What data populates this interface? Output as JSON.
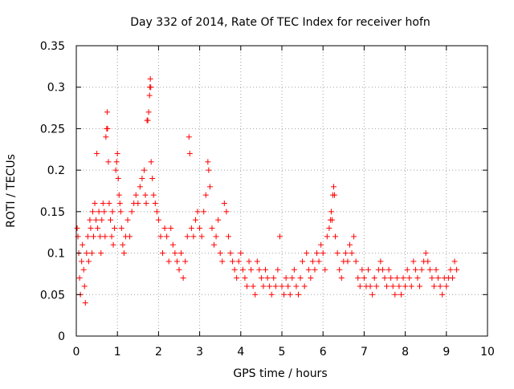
{
  "chart_data": {
    "type": "scatter",
    "title": "Day 332 of 2014, Rate Of TEC Index for receiver hofn",
    "xlabel": "GPS time / hours",
    "ylabel": "ROTI / TECUs",
    "xlim": [
      0,
      10
    ],
    "ylim": [
      0,
      0.35
    ],
    "x_ticks": [
      0,
      1,
      2,
      3,
      4,
      5,
      6,
      7,
      8,
      9,
      10
    ],
    "x_tick_labels": [
      "0",
      "1",
      "2",
      "3",
      "4",
      "5",
      "6",
      "7",
      "8",
      "9",
      "10"
    ],
    "y_ticks": [
      0,
      0.05,
      0.1,
      0.15,
      0.2,
      0.25,
      0.3,
      0.35
    ],
    "y_tick_labels": [
      "0",
      "0.05",
      "0.1",
      "0.15",
      "0.2",
      "0.25",
      "0.3",
      "0.35"
    ],
    "grid": true,
    "marker": "+",
    "marker_color": "#ff0000",
    "series": [
      {
        "name": "ROTI",
        "points": [
          [
            0.02,
            0.13
          ],
          [
            0.04,
            0.12
          ],
          [
            0.06,
            0.1
          ],
          [
            0.08,
            0.07
          ],
          [
            0.1,
            0.05
          ],
          [
            0.13,
            0.09
          ],
          [
            0.15,
            0.11
          ],
          [
            0.18,
            0.08
          ],
          [
            0.2,
            0.06
          ],
          [
            0.22,
            0.04
          ],
          [
            0.25,
            0.1
          ],
          [
            0.28,
            0.12
          ],
          [
            0.3,
            0.09
          ],
          [
            0.33,
            0.14
          ],
          [
            0.35,
            0.13
          ],
          [
            0.38,
            0.1
          ],
          [
            0.4,
            0.15
          ],
          [
            0.42,
            0.12
          ],
          [
            0.45,
            0.16
          ],
          [
            0.48,
            0.14
          ],
          [
            0.5,
            0.22
          ],
          [
            0.52,
            0.13
          ],
          [
            0.55,
            0.15
          ],
          [
            0.58,
            0.12
          ],
          [
            0.6,
            0.1
          ],
          [
            0.62,
            0.14
          ],
          [
            0.65,
            0.16
          ],
          [
            0.68,
            0.15
          ],
          [
            0.7,
            0.12
          ],
          [
            0.72,
            0.24
          ],
          [
            0.74,
            0.25
          ],
          [
            0.75,
            0.27
          ],
          [
            0.76,
            0.25
          ],
          [
            0.78,
            0.21
          ],
          [
            0.8,
            0.16
          ],
          [
            0.83,
            0.14
          ],
          [
            0.86,
            0.12
          ],
          [
            0.88,
            0.15
          ],
          [
            0.9,
            0.11
          ],
          [
            0.93,
            0.13
          ],
          [
            0.96,
            0.2
          ],
          [
            0.98,
            0.21
          ],
          [
            1.0,
            0.22
          ],
          [
            1.02,
            0.19
          ],
          [
            1.04,
            0.17
          ],
          [
            1.06,
            0.16
          ],
          [
            1.08,
            0.15
          ],
          [
            1.1,
            0.13
          ],
          [
            1.13,
            0.11
          ],
          [
            1.16,
            0.1
          ],
          [
            1.2,
            0.12
          ],
          [
            1.25,
            0.14
          ],
          [
            1.3,
            0.12
          ],
          [
            1.35,
            0.15
          ],
          [
            1.4,
            0.16
          ],
          [
            1.45,
            0.17
          ],
          [
            1.5,
            0.16
          ],
          [
            1.55,
            0.18
          ],
          [
            1.6,
            0.19
          ],
          [
            1.65,
            0.2
          ],
          [
            1.68,
            0.17
          ],
          [
            1.7,
            0.16
          ],
          [
            1.72,
            0.26
          ],
          [
            1.74,
            0.26
          ],
          [
            1.76,
            0.27
          ],
          [
            1.78,
            0.29
          ],
          [
            1.79,
            0.3
          ],
          [
            1.8,
            0.31
          ],
          [
            1.81,
            0.3
          ],
          [
            1.82,
            0.21
          ],
          [
            1.85,
            0.19
          ],
          [
            1.88,
            0.17
          ],
          [
            1.92,
            0.16
          ],
          [
            1.96,
            0.15
          ],
          [
            2.0,
            0.14
          ],
          [
            2.05,
            0.12
          ],
          [
            2.1,
            0.1
          ],
          [
            2.15,
            0.13
          ],
          [
            2.2,
            0.12
          ],
          [
            2.25,
            0.09
          ],
          [
            2.3,
            0.13
          ],
          [
            2.35,
            0.11
          ],
          [
            2.4,
            0.1
          ],
          [
            2.45,
            0.09
          ],
          [
            2.5,
            0.08
          ],
          [
            2.55,
            0.1
          ],
          [
            2.6,
            0.07
          ],
          [
            2.65,
            0.09
          ],
          [
            2.7,
            0.12
          ],
          [
            2.74,
            0.24
          ],
          [
            2.76,
            0.22
          ],
          [
            2.8,
            0.13
          ],
          [
            2.85,
            0.12
          ],
          [
            2.9,
            0.14
          ],
          [
            2.95,
            0.15
          ],
          [
            3.0,
            0.13
          ],
          [
            3.05,
            0.12
          ],
          [
            3.1,
            0.15
          ],
          [
            3.15,
            0.17
          ],
          [
            3.2,
            0.21
          ],
          [
            3.22,
            0.2
          ],
          [
            3.25,
            0.18
          ],
          [
            3.3,
            0.13
          ],
          [
            3.35,
            0.11
          ],
          [
            3.4,
            0.12
          ],
          [
            3.45,
            0.14
          ],
          [
            3.5,
            0.1
          ],
          [
            3.55,
            0.09
          ],
          [
            3.6,
            0.16
          ],
          [
            3.65,
            0.15
          ],
          [
            3.7,
            0.12
          ],
          [
            3.75,
            0.1
          ],
          [
            3.8,
            0.09
          ],
          [
            3.85,
            0.08
          ],
          [
            3.9,
            0.07
          ],
          [
            3.95,
            0.09
          ],
          [
            4.0,
            0.1
          ],
          [
            4.05,
            0.08
          ],
          [
            4.1,
            0.07
          ],
          [
            4.15,
            0.06
          ],
          [
            4.2,
            0.09
          ],
          [
            4.25,
            0.08
          ],
          [
            4.3,
            0.06
          ],
          [
            4.35,
            0.05
          ],
          [
            4.4,
            0.09
          ],
          [
            4.45,
            0.08
          ],
          [
            4.5,
            0.07
          ],
          [
            4.55,
            0.06
          ],
          [
            4.6,
            0.08
          ],
          [
            4.65,
            0.07
          ],
          [
            4.7,
            0.06
          ],
          [
            4.75,
            0.05
          ],
          [
            4.8,
            0.07
          ],
          [
            4.85,
            0.06
          ],
          [
            4.9,
            0.08
          ],
          [
            4.95,
            0.12
          ],
          [
            5.0,
            0.06
          ],
          [
            5.05,
            0.05
          ],
          [
            5.1,
            0.07
          ],
          [
            5.15,
            0.06
          ],
          [
            5.2,
            0.05
          ],
          [
            5.25,
            0.07
          ],
          [
            5.3,
            0.08
          ],
          [
            5.35,
            0.06
          ],
          [
            5.4,
            0.05
          ],
          [
            5.45,
            0.07
          ],
          [
            5.5,
            0.09
          ],
          [
            5.55,
            0.06
          ],
          [
            5.6,
            0.1
          ],
          [
            5.65,
            0.08
          ],
          [
            5.7,
            0.07
          ],
          [
            5.75,
            0.09
          ],
          [
            5.8,
            0.08
          ],
          [
            5.85,
            0.1
          ],
          [
            5.9,
            0.09
          ],
          [
            5.95,
            0.11
          ],
          [
            6.0,
            0.1
          ],
          [
            6.05,
            0.08
          ],
          [
            6.1,
            0.12
          ],
          [
            6.15,
            0.13
          ],
          [
            6.18,
            0.14
          ],
          [
            6.2,
            0.15
          ],
          [
            6.22,
            0.14
          ],
          [
            6.24,
            0.17
          ],
          [
            6.26,
            0.18
          ],
          [
            6.28,
            0.17
          ],
          [
            6.3,
            0.12
          ],
          [
            6.35,
            0.1
          ],
          [
            6.4,
            0.08
          ],
          [
            6.45,
            0.07
          ],
          [
            6.5,
            0.09
          ],
          [
            6.55,
            0.1
          ],
          [
            6.6,
            0.09
          ],
          [
            6.65,
            0.11
          ],
          [
            6.7,
            0.1
          ],
          [
            6.75,
            0.12
          ],
          [
            6.8,
            0.09
          ],
          [
            6.85,
            0.07
          ],
          [
            6.9,
            0.06
          ],
          [
            6.95,
            0.08
          ],
          [
            7.0,
            0.07
          ],
          [
            7.05,
            0.06
          ],
          [
            7.1,
            0.08
          ],
          [
            7.15,
            0.06
          ],
          [
            7.2,
            0.05
          ],
          [
            7.25,
            0.07
          ],
          [
            7.3,
            0.06
          ],
          [
            7.35,
            0.08
          ],
          [
            7.4,
            0.09
          ],
          [
            7.45,
            0.08
          ],
          [
            7.5,
            0.07
          ],
          [
            7.55,
            0.06
          ],
          [
            7.6,
            0.08
          ],
          [
            7.65,
            0.07
          ],
          [
            7.7,
            0.06
          ],
          [
            7.75,
            0.05
          ],
          [
            7.8,
            0.07
          ],
          [
            7.85,
            0.06
          ],
          [
            7.9,
            0.05
          ],
          [
            7.95,
            0.07
          ],
          [
            8.0,
            0.06
          ],
          [
            8.05,
            0.08
          ],
          [
            8.1,
            0.07
          ],
          [
            8.15,
            0.06
          ],
          [
            8.2,
            0.09
          ],
          [
            8.25,
            0.08
          ],
          [
            8.3,
            0.07
          ],
          [
            8.35,
            0.06
          ],
          [
            8.4,
            0.08
          ],
          [
            8.45,
            0.09
          ],
          [
            8.5,
            0.1
          ],
          [
            8.55,
            0.09
          ],
          [
            8.6,
            0.08
          ],
          [
            8.65,
            0.07
          ],
          [
            8.7,
            0.06
          ],
          [
            8.75,
            0.08
          ],
          [
            8.8,
            0.07
          ],
          [
            8.85,
            0.06
          ],
          [
            8.9,
            0.05
          ],
          [
            8.95,
            0.07
          ],
          [
            9.0,
            0.06
          ],
          [
            9.05,
            0.07
          ],
          [
            9.1,
            0.08
          ],
          [
            9.15,
            0.07
          ],
          [
            9.2,
            0.09
          ],
          [
            9.25,
            0.08
          ]
        ]
      }
    ]
  }
}
